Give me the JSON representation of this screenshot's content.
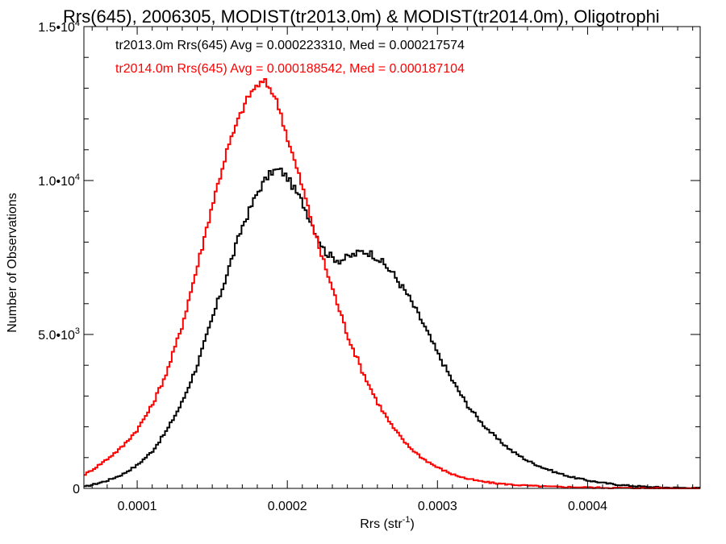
{
  "chart_data": {
    "type": "line",
    "title": "Rrs(645), 2006305, MODIST(tr2013.0m) & MODIST(tr2014.0m), Oligotrophi",
    "xlabel": "Rrs (str",
    "xlabel_sup": "-1",
    "xlabel_suffix": ")",
    "ylabel": "Number of Observations",
    "xlim": [
      6.45e-05,
      0.000475
    ],
    "ylim": [
      0,
      15000
    ],
    "x_ticks": [
      {
        "value": 0.0001,
        "label": "0.0001"
      },
      {
        "value": 0.0002,
        "label": "0.0002"
      },
      {
        "value": 0.0003,
        "label": "0.0003"
      },
      {
        "value": 0.0004,
        "label": "0.0004"
      }
    ],
    "y_ticks": [
      {
        "value": 0,
        "label": "0",
        "sup": ""
      },
      {
        "value": 5000,
        "label": "5.0•10",
        "sup": "3"
      },
      {
        "value": 10000,
        "label": "1.0•10",
        "sup": "4"
      },
      {
        "value": 15000,
        "label": "1.5•10",
        "sup": "4"
      }
    ],
    "annotations": [
      {
        "text": "tr2013.0m Rrs(645) Avg = 0.000223310, Med = 0.000217574",
        "color": "#000000"
      },
      {
        "text": "tr2014.0m Rrs(645) Avg = 0.000188542, Med = 0.000187104",
        "color": "#ff0000"
      }
    ],
    "series": [
      {
        "name": "tr2013.0m",
        "color": "#000000",
        "x": [
          6.5e-05,
          8e-05,
          9e-05,
          0.0001,
          0.00011,
          0.00012,
          0.00013,
          0.00014,
          0.00015,
          0.00016,
          0.00017,
          0.00018,
          0.000185,
          0.00019,
          0.000195,
          0.0002,
          0.00021,
          0.00022,
          0.000225,
          0.00023,
          0.000235,
          0.00024,
          0.000245,
          0.00025,
          0.000255,
          0.00026,
          0.00027,
          0.00028,
          0.00029,
          0.0003,
          0.00031,
          0.00032,
          0.00033,
          0.00034,
          0.00035,
          0.00036,
          0.00037,
          0.00038,
          0.00039,
          0.0004,
          0.00041,
          0.00042,
          0.00043,
          0.00044,
          0.00045,
          0.00046,
          0.000475
        ],
        "y": [
          50,
          250,
          450,
          750,
          1200,
          1900,
          2800,
          4000,
          5500,
          7000,
          8500,
          9600,
          10000,
          10300,
          10350,
          10100,
          9300,
          8200,
          7700,
          7500,
          7400,
          7500,
          7600,
          7700,
          7650,
          7500,
          7000,
          6300,
          5400,
          4400,
          3500,
          2700,
          2100,
          1600,
          1200,
          900,
          680,
          500,
          360,
          260,
          180,
          120,
          80,
          50,
          30,
          20,
          10
        ]
      },
      {
        "name": "tr2014.0m",
        "color": "#ff0000",
        "x": [
          6.5e-05,
          7e-05,
          8e-05,
          9e-05,
          0.0001,
          0.00011,
          0.00012,
          0.00013,
          0.00014,
          0.00015,
          0.00016,
          0.00017,
          0.000175,
          0.00018,
          0.000185,
          0.00019,
          0.000195,
          0.0002,
          0.00021,
          0.00022,
          0.00023,
          0.00024,
          0.00025,
          0.00026,
          0.00027,
          0.00028,
          0.00029,
          0.0003,
          0.00031,
          0.00032,
          0.00033,
          0.00034,
          0.00035,
          0.00036,
          0.00037,
          0.00038,
          0.0004,
          0.00042,
          0.00044,
          0.000475
        ],
        "y": [
          450,
          600,
          950,
          1350,
          1900,
          2700,
          3800,
          5300,
          7200,
          9200,
          11000,
          12300,
          12800,
          13100,
          13200,
          12900,
          12300,
          11400,
          9800,
          8000,
          6500,
          5000,
          3800,
          2800,
          2000,
          1400,
          980,
          680,
          460,
          310,
          220,
          160,
          120,
          90,
          65,
          50,
          30,
          15,
          8,
          5
        ]
      }
    ]
  }
}
